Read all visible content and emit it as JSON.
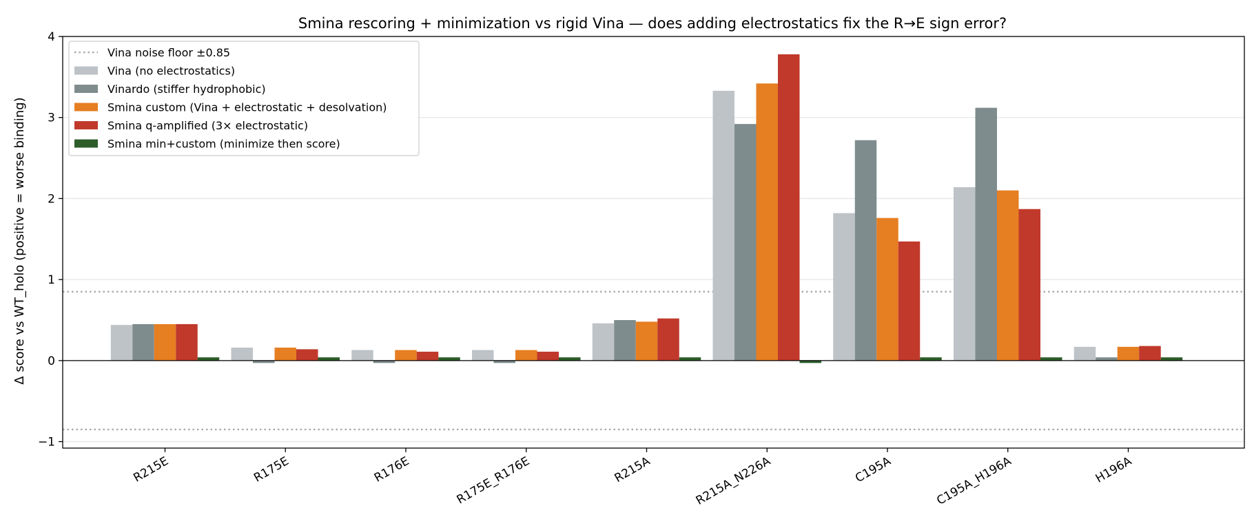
{
  "chart_data": {
    "type": "bar",
    "title": "Smina rescoring + minimization vs rigid Vina — does adding electrostatics fix the R→E sign error?",
    "xlabel": "",
    "ylabel": "Δ score vs WT_holo  (positive = worse binding)",
    "ylim": [
      -1.08,
      4.0
    ],
    "yticks": [
      -1,
      0,
      1,
      2,
      3,
      4
    ],
    "ytick_labels": [
      "−1",
      "0",
      "1",
      "2",
      "3",
      "4"
    ],
    "grid": "y",
    "legend_position": "top-left",
    "categories": [
      "R215E",
      "R175E",
      "R176E",
      "R175E_R176E",
      "R215A",
      "R215A_N226A",
      "C195A",
      "C195A_H196A",
      "H196A"
    ],
    "reference_lines": [
      {
        "name": "Vina noise floor ±0.85",
        "values": [
          0.85,
          -0.85
        ],
        "color": "#aaaaaa",
        "style": "dotted"
      }
    ],
    "series": [
      {
        "name": "Vina (no electrostatics)",
        "color": "#bdc3c7",
        "values": [
          0.44,
          0.16,
          0.13,
          0.13,
          0.46,
          3.33,
          1.82,
          2.14,
          0.17
        ]
      },
      {
        "name": "Vinardo (stiffer hydrophobic)",
        "color": "#7f8c8d",
        "values": [
          0.45,
          -0.03,
          -0.02,
          -0.02,
          0.5,
          2.92,
          2.72,
          3.12,
          0.04
        ]
      },
      {
        "name": "Smina custom (Vina + electrostatic + desolvation)",
        "color": "#e67e22",
        "values": [
          0.45,
          0.16,
          0.13,
          0.13,
          0.48,
          3.42,
          1.76,
          2.1,
          0.17
        ]
      },
      {
        "name": "Smina q-amplified (3× electrostatic)",
        "color": "#c0392b",
        "values": [
          0.45,
          0.14,
          0.11,
          0.11,
          0.52,
          3.78,
          1.47,
          1.87,
          0.18
        ]
      },
      {
        "name": "Smina min+custom (minimize then score)",
        "color": "#2d5e2a",
        "values": [
          0.04,
          0.04,
          0.04,
          0.04,
          0.04,
          -0.02,
          0.04,
          0.04,
          0.04
        ]
      }
    ]
  }
}
